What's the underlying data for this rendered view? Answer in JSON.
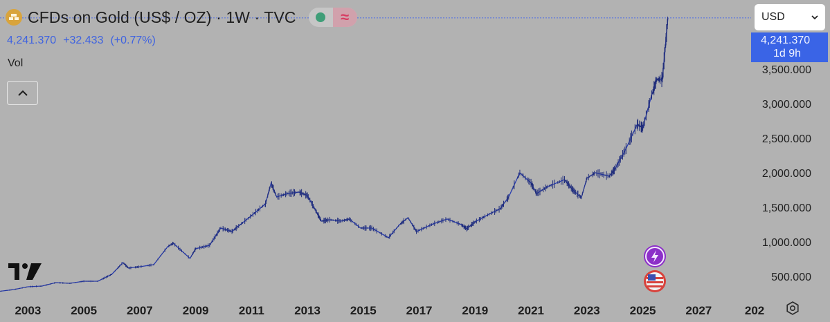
{
  "header": {
    "title": "CFDs on Gold (US$ / OZ) · 1W · TVC",
    "icon": "gold-bars-icon",
    "status_icon": "market-open-dot-icon",
    "indicator_icon": "approx-wave-icon"
  },
  "quote": {
    "price": "4,241.370",
    "change": "+32.433",
    "change_pct": "(+0.77%)"
  },
  "vol_label": "Vol",
  "currency": {
    "selected": "USD"
  },
  "price_tag": {
    "value": "4,241.370",
    "countdown": "1d 9h"
  },
  "colors": {
    "background": "#b2b2b2",
    "series": "#2a3fb4",
    "accent": "#3a64e6",
    "gold_icon": "#d9a43c"
  },
  "chart_data": {
    "type": "line",
    "symbol": "CFDs on Gold (US$ / OZ)",
    "interval": "1W",
    "x_ticks": [
      "2003",
      "2005",
      "2007",
      "2009",
      "2011",
      "2013",
      "2015",
      "2017",
      "2019",
      "2021",
      "2023",
      "2025",
      "2027",
      "202"
    ],
    "y_ticks": [
      "500.000",
      "1,000.000",
      "1,500.000",
      "2,000.000",
      "2,500.000",
      "3,000.000",
      "3,500.000"
    ],
    "y_tick_values": [
      500,
      1000,
      1500,
      2000,
      2500,
      3000,
      3500
    ],
    "xlim": [
      2002.0,
      2028.8
    ],
    "ylim": [
      180,
      4500
    ],
    "last_price": 4241.37,
    "series": [
      {
        "x": [
          2002.0,
          2002.5,
          2003.0,
          2003.5,
          2004.0,
          2004.5,
          2005.0,
          2005.5,
          2006.0,
          2006.4,
          2006.6,
          2007.0,
          2007.5,
          2008.0,
          2008.2,
          2008.8,
          2009.0,
          2009.5,
          2009.9,
          2010.3,
          2010.6,
          2011.0,
          2011.5,
          2011.7,
          2011.9,
          2012.3,
          2012.7,
          2013.0,
          2013.3,
          2013.5,
          2013.8,
          2014.2,
          2014.5,
          2014.9,
          2015.3,
          2015.9,
          2016.3,
          2016.6,
          2016.9,
          2017.5,
          2018.0,
          2018.5,
          2018.7,
          2019.0,
          2019.5,
          2019.9,
          2020.2,
          2020.6,
          2021.0,
          2021.2,
          2021.6,
          2022.2,
          2022.5,
          2022.8,
          2023.0,
          2023.3,
          2023.8,
          2024.0,
          2024.4,
          2024.8,
          2025.0,
          2025.3,
          2025.5,
          2025.7,
          2025.8,
          2025.9
        ],
        "y": [
          285,
          310,
          350,
          360,
          410,
          400,
          430,
          430,
          530,
          700,
          620,
          640,
          670,
          930,
          980,
          760,
          900,
          950,
          1200,
          1150,
          1250,
          1380,
          1550,
          1850,
          1650,
          1700,
          1720,
          1670,
          1450,
          1300,
          1320,
          1300,
          1330,
          1200,
          1200,
          1060,
          1250,
          1350,
          1150,
          1260,
          1330,
          1250,
          1190,
          1290,
          1400,
          1480,
          1650,
          2000,
          1850,
          1700,
          1800,
          1900,
          1750,
          1640,
          1920,
          2000,
          1950,
          2050,
          2350,
          2700,
          2650,
          3100,
          3350,
          3350,
          3800,
          4241
        ]
      }
    ]
  }
}
